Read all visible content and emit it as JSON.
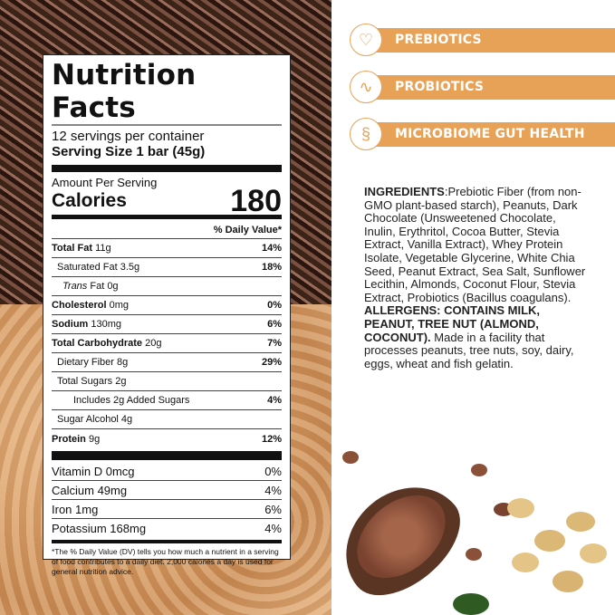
{
  "label": {
    "title": "Nutrition Facts",
    "servings": "12 servings per container",
    "serving_size": "Serving Size 1 bar (45g)",
    "amount_per_serving": "Amount Per Serving",
    "calories_label": "Calories",
    "calories_value": "180",
    "dv_header": "% Daily Value*",
    "rows": [
      {
        "name": "Total Fat",
        "amount": " 11g",
        "dv": "14%",
        "bold": true,
        "indent": 0
      },
      {
        "name": "Saturated Fat 3.5g",
        "amount": "",
        "dv": "18%",
        "bold": false,
        "indent": 1
      },
      {
        "name": "Trans",
        "amount": " Fat 0g",
        "dv": "",
        "bold": false,
        "indent": 2,
        "italic": true
      },
      {
        "name": "Cholesterol",
        "amount": " 0mg",
        "dv": "0%",
        "bold": true,
        "indent": 0
      },
      {
        "name": "Sodium",
        "amount": " 130mg",
        "dv": "6%",
        "bold": true,
        "indent": 0
      },
      {
        "name": "Total Carbohydrate",
        "amount": " 20g",
        "dv": "7%",
        "bold": true,
        "indent": 0
      },
      {
        "name": "Dietary Fiber 8g",
        "amount": "",
        "dv": "29%",
        "bold": false,
        "indent": 1
      },
      {
        "name": "Total Sugars 2g",
        "amount": "",
        "dv": "",
        "bold": false,
        "indent": 1
      },
      {
        "name": "Includes 2g Added Sugars",
        "amount": "",
        "dv": "4%",
        "bold": false,
        "indent": 3
      },
      {
        "name": "Sugar Alcohol  4g",
        "amount": "",
        "dv": "",
        "bold": false,
        "indent": 1
      },
      {
        "name": "Protein",
        "amount": " 9g",
        "dv": "12%",
        "bold": true,
        "indent": 0
      }
    ],
    "minerals": [
      {
        "name": "Vitamin D 0mcg",
        "dv": "0%"
      },
      {
        "name": "Calcium 49mg",
        "dv": "4%"
      },
      {
        "name": "Iron 1mg",
        "dv": "6%"
      },
      {
        "name": "Potassium 168mg",
        "dv": "4%"
      }
    ],
    "footnote": "*The % Daily Value (DV) tells you how much a nutrient in a serving of food contributes to a daily diet. 2,000 calories a day is used for general nutrition advice."
  },
  "benefits": [
    {
      "label": "PREBIOTICS",
      "icon": "waist-check-icon"
    },
    {
      "label": "PROBIOTICS",
      "icon": "bacteria-icon"
    },
    {
      "label": "MICROBIOME GUT HEALTH",
      "icon": "intestine-icon"
    }
  ],
  "ingredients": {
    "heading": "INGREDIENTS",
    "text": ":Prebiotic Fiber (from non-GMO plant-based starch), Peanuts, Dark Chocolate (Unsweetened Chocolate, Inulin, Erythritol, Cocoa Butter, Stevia Extract, Vanilla Extract), Whey Protein Isolate, Vegetable Glycerine, White Chia Seed, Peanut Extract, Sea Salt, Sunflower Lecithin, Almonds, Coconut Flour, Stevia Extract, Probiotics (Bacillus coagulans). ",
    "allergens": "ALLERGENS: CONTAINS MILK, PEANUT, TREE NUT (ALMOND, COCONUT).",
    "facility": " Made in a facility that processes peanuts, tree nuts, soy, dairy, eggs, wheat and fish gelatin."
  },
  "colors": {
    "accent": "#e7a257",
    "chocolate": "#4a2c20",
    "peanut_butter": "#d9a06a"
  }
}
